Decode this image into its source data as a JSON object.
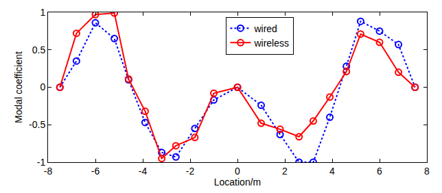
{
  "chart_data": {
    "type": "line",
    "x_label": "Location/m",
    "y_label": "Modal coefficient",
    "x": [
      -7.5,
      -6.8,
      -6.0,
      -5.2,
      -4.6,
      -3.9,
      -3.2,
      -2.6,
      -1.8,
      -1.0,
      0,
      1.0,
      1.8,
      2.6,
      3.2,
      3.9,
      4.6,
      5.2,
      6.0,
      6.8,
      7.5
    ],
    "series": [
      {
        "name": "wired",
        "color": "#0000ff",
        "line_style": "dotted",
        "marker": "circle-open",
        "values": [
          0,
          0.35,
          0.86,
          0.65,
          0.1,
          -0.47,
          -0.87,
          -0.93,
          -0.55,
          -0.17,
          0,
          -0.24,
          -0.63,
          -1.0,
          -1.0,
          -0.4,
          0.28,
          0.88,
          0.75,
          0.57,
          0
        ]
      },
      {
        "name": "wireless",
        "color": "#ff0000",
        "line_style": "solid",
        "marker": "circle-open",
        "values": [
          0,
          0.72,
          0.97,
          0.99,
          0.11,
          -0.32,
          -0.95,
          -0.78,
          -0.67,
          -0.08,
          0,
          -0.48,
          -0.56,
          -0.66,
          -0.45,
          -0.13,
          0.21,
          0.71,
          0.6,
          0.2,
          0
        ]
      }
    ],
    "xlim": [
      -8,
      8
    ],
    "xticks": [
      -8,
      -6,
      -4,
      -2,
      0,
      2,
      4,
      6,
      8
    ],
    "ylim": [
      -1,
      1
    ],
    "yticks": [
      -1,
      -0.5,
      0,
      0.5,
      1
    ],
    "grid": false,
    "legend": "upper center"
  }
}
